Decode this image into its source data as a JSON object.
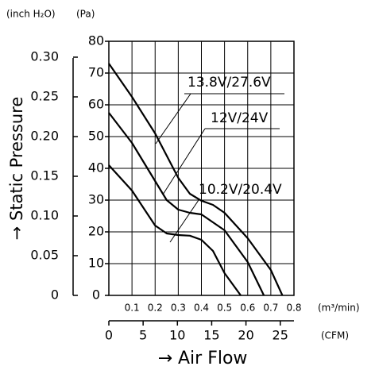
{
  "chart_data": {
    "type": "line",
    "y_label": "→ Static Pressure",
    "y_unit": "(Pa)",
    "y2_unit": "(inch H₂O)",
    "x_label": "→ Air Flow",
    "x_unit": "(m³/min)",
    "x2_unit": "(CFM)",
    "xlim": [
      0,
      0.8
    ],
    "xticks": [
      0.1,
      0.2,
      0.3,
      0.4,
      0.5,
      0.6,
      0.7,
      0.8
    ],
    "x2lim": [
      0,
      27
    ],
    "x2ticks": [
      0,
      5,
      10,
      15,
      20,
      25
    ],
    "ylim": [
      0,
      80
    ],
    "yticks": [
      0,
      10,
      20,
      30,
      40,
      50,
      60,
      70,
      80
    ],
    "y2lim": [
      0,
      0.32
    ],
    "y2ticks": [
      0,
      0.05,
      {
        "value": 0.1,
        "label": "0.10"
      },
      0.15,
      {
        "value": 0.2,
        "label": "0.20"
      },
      0.25,
      {
        "value": 0.3,
        "label": "0.30"
      }
    ],
    "grid": true,
    "series": [
      {
        "name": "13.8V/27.6V",
        "color": "#000000",
        "x": [
          0,
          0.1,
          0.2,
          0.3,
          0.35,
          0.4,
          0.45,
          0.5,
          0.6,
          0.7,
          0.75
        ],
        "values": [
          73,
          62.5,
          51,
          37,
          32,
          29.8,
          28.5,
          26,
          18,
          8,
          0
        ]
      },
      {
        "name": "12V/24V",
        "color": "#000000",
        "x": [
          0,
          0.1,
          0.2,
          0.25,
          0.3,
          0.35,
          0.4,
          0.5,
          0.6,
          0.67
        ],
        "values": [
          57.5,
          48,
          36,
          30,
          27,
          26,
          25.5,
          20.5,
          10.5,
          0
        ]
      },
      {
        "name": "10.2V/20.4V",
        "color": "#000000",
        "x": [
          0,
          0.1,
          0.2,
          0.25,
          0.3,
          0.35,
          0.4,
          0.45,
          0.5,
          0.57
        ],
        "values": [
          41,
          33,
          22,
          19.5,
          19,
          18.8,
          17.5,
          14,
          7,
          0
        ]
      }
    ]
  }
}
